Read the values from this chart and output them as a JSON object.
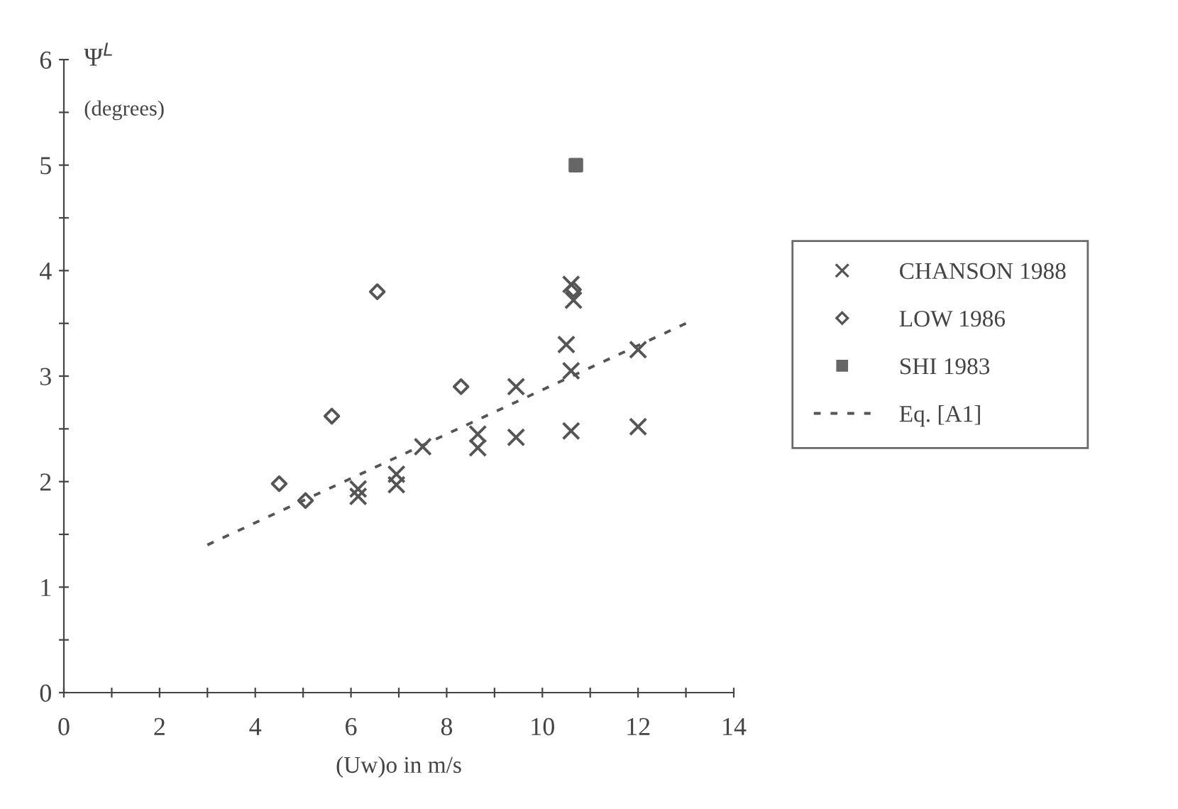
{
  "chart_data": {
    "type": "scatter",
    "ylabel": "Ψ$^{L}$",
    "subtitle": "(degrees)",
    "xlabel": "(Uw)o in m/s",
    "xlim": [
      0,
      14
    ],
    "ylim": [
      0,
      6
    ],
    "xticks": [
      0,
      {
        "value": 1,
        "label": null
      },
      2,
      {
        "value": 3,
        "label": null
      },
      4,
      {
        "value": 5,
        "label": null
      },
      6,
      {
        "value": 7,
        "label": null
      },
      8,
      {
        "value": 9,
        "label": null
      },
      10,
      {
        "value": 11,
        "label": null
      },
      12,
      {
        "value": 13,
        "label": null
      },
      14
    ],
    "yticks": [
      0,
      {
        "value": 0.5,
        "label": null
      },
      1,
      {
        "value": 1.5,
        "label": null
      },
      2,
      {
        "value": 2.5,
        "label": null
      },
      3,
      {
        "value": 3.5,
        "label": null
      },
      4,
      {
        "value": 4.5,
        "label": null
      },
      5,
      {
        "value": 5.5,
        "label": null
      },
      6
    ],
    "grid": false,
    "legend": "right",
    "series": [
      {
        "name": "CHANSON 1988",
        "type": "scatter",
        "marker": "cross",
        "color": "#555555",
        "x": [
          10.6,
          10.65,
          10.5,
          10.6,
          9.45,
          12.0,
          10.6,
          12.0,
          9.45,
          8.65,
          8.65,
          7.5,
          6.95,
          6.95,
          6.15,
          6.15
        ],
        "values": [
          3.87,
          3.72,
          3.3,
          3.05,
          2.9,
          3.25,
          2.48,
          2.52,
          2.42,
          2.45,
          2.32,
          2.33,
          2.07,
          1.97,
          1.93,
          1.86
        ]
      },
      {
        "name": "LOW 1986",
        "type": "scatter",
        "marker": "diamond",
        "color": "#555555",
        "x": [
          6.55,
          5.6,
          8.3,
          4.5,
          5.05,
          10.65
        ],
        "values": [
          3.8,
          2.62,
          2.9,
          1.98,
          1.82,
          3.82
        ]
      },
      {
        "name": "SHI 1983",
        "type": "scatter",
        "marker": "square",
        "color": "#666666",
        "x": [
          10.7
        ],
        "values": [
          5.0
        ]
      },
      {
        "name": "Eq. [A1]",
        "type": "line",
        "line_style": "dotted",
        "marker": "none",
        "color": "#555555",
        "x": [
          3.0,
          13.0
        ],
        "values": [
          1.4,
          3.5
        ]
      }
    ]
  }
}
